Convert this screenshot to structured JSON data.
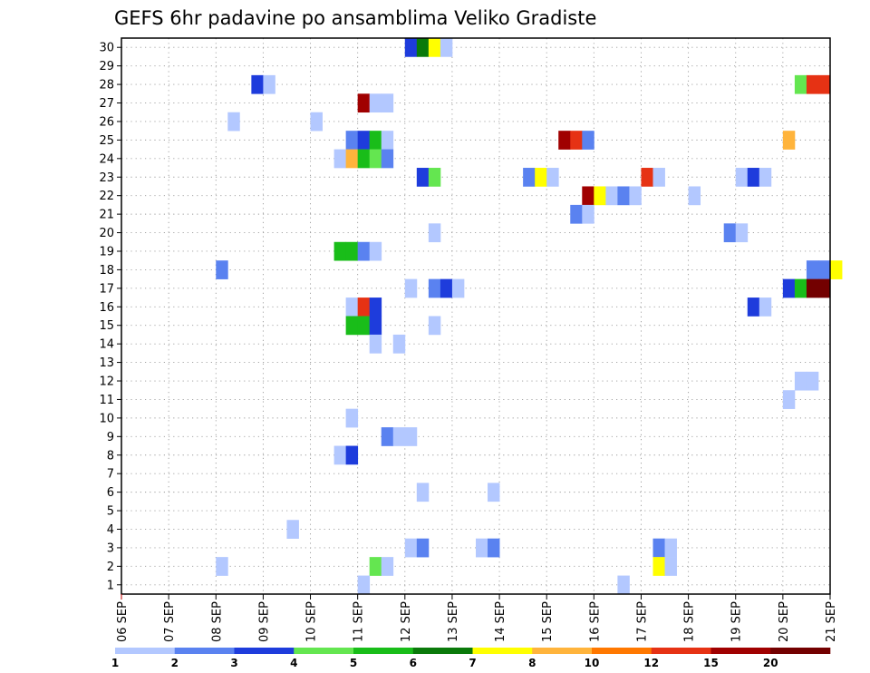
{
  "chart_data": {
    "type": "heatmap",
    "title": "GEFS 6hr padavine po ansamblima Veliko Gradiste",
    "x_tick_labels": [
      "06 SEP",
      "07 SEP",
      "08 SEP",
      "09 SEP",
      "10 SEP",
      "11 SEP",
      "12 SEP",
      "13 SEP",
      "14 SEP",
      "15 SEP",
      "16 SEP",
      "17 SEP",
      "18 SEP",
      "19 SEP",
      "20 SEP",
      "21 SEP"
    ],
    "y_tick_labels": [
      "1",
      "2",
      "3",
      "4",
      "5",
      "6",
      "7",
      "8",
      "9",
      "10",
      "11",
      "12",
      "13",
      "14",
      "15",
      "16",
      "17",
      "18",
      "19",
      "20",
      "21",
      "22",
      "23",
      "24",
      "25",
      "26",
      "27",
      "28",
      "29",
      "30"
    ],
    "x_unit": "day",
    "xlim": [
      6,
      21
    ],
    "ylim": [
      0.5,
      30.5
    ],
    "grid": true,
    "colorbar": {
      "labels": [
        "1",
        "2",
        "3",
        "4",
        "5",
        "6",
        "7",
        "8",
        "10",
        "12",
        "15",
        "20"
      ],
      "colors": [
        "#b3c8ff",
        "#5a82f0",
        "#1e3cdc",
        "#64e650",
        "#19bd19",
        "#0a7a0a",
        "#ffff00",
        "#ffb43c",
        "#ff7800",
        "#e63214",
        "#a00000",
        "#730000"
      ]
    },
    "cells": [
      {
        "x": 12.0,
        "y": 30,
        "c": 3
      },
      {
        "x": 12.25,
        "y": 30,
        "c": 6
      },
      {
        "x": 12.5,
        "y": 30,
        "c": 7
      },
      {
        "x": 12.75,
        "y": 30,
        "c": 1
      },
      {
        "x": 8.75,
        "y": 28,
        "c": 3
      },
      {
        "x": 9.0,
        "y": 28,
        "c": 1
      },
      {
        "x": 20.25,
        "y": 28,
        "c": 4
      },
      {
        "x": 20.5,
        "y": 28,
        "c": 10
      },
      {
        "x": 20.75,
        "y": 28,
        "c": 10
      },
      {
        "x": 11.0,
        "y": 27,
        "c": 11
      },
      {
        "x": 11.25,
        "y": 27,
        "c": 1
      },
      {
        "x": 11.5,
        "y": 27,
        "c": 1
      },
      {
        "x": 8.25,
        "y": 26,
        "c": 1
      },
      {
        "x": 10.0,
        "y": 26,
        "c": 1
      },
      {
        "x": 10.75,
        "y": 25,
        "c": 2
      },
      {
        "x": 11.0,
        "y": 25,
        "c": 3
      },
      {
        "x": 11.25,
        "y": 25,
        "c": 5
      },
      {
        "x": 11.5,
        "y": 25,
        "c": 1
      },
      {
        "x": 15.25,
        "y": 25,
        "c": 11
      },
      {
        "x": 15.5,
        "y": 25,
        "c": 10
      },
      {
        "x": 15.75,
        "y": 25,
        "c": 2
      },
      {
        "x": 20.0,
        "y": 25,
        "c": 8
      },
      {
        "x": 10.5,
        "y": 24,
        "c": 1
      },
      {
        "x": 10.75,
        "y": 24,
        "c": 8
      },
      {
        "x": 11.0,
        "y": 24,
        "c": 5
      },
      {
        "x": 11.25,
        "y": 24,
        "c": 4
      },
      {
        "x": 11.5,
        "y": 24,
        "c": 2
      },
      {
        "x": 12.25,
        "y": 23,
        "c": 3
      },
      {
        "x": 12.5,
        "y": 23,
        "c": 4
      },
      {
        "x": 14.5,
        "y": 23,
        "c": 2
      },
      {
        "x": 14.75,
        "y": 23,
        "c": 7
      },
      {
        "x": 15.0,
        "y": 23,
        "c": 1
      },
      {
        "x": 17.0,
        "y": 23,
        "c": 10
      },
      {
        "x": 17.25,
        "y": 23,
        "c": 1
      },
      {
        "x": 19.0,
        "y": 23,
        "c": 1
      },
      {
        "x": 19.25,
        "y": 23,
        "c": 3
      },
      {
        "x": 19.5,
        "y": 23,
        "c": 1
      },
      {
        "x": 15.75,
        "y": 22,
        "c": 11
      },
      {
        "x": 16.0,
        "y": 22,
        "c": 7
      },
      {
        "x": 16.25,
        "y": 22,
        "c": 1
      },
      {
        "x": 16.5,
        "y": 22,
        "c": 2
      },
      {
        "x": 16.75,
        "y": 22,
        "c": 1
      },
      {
        "x": 18.0,
        "y": 22,
        "c": 1
      },
      {
        "x": 15.5,
        "y": 21,
        "c": 2
      },
      {
        "x": 15.75,
        "y": 21,
        "c": 1
      },
      {
        "x": 12.5,
        "y": 20,
        "c": 1
      },
      {
        "x": 18.75,
        "y": 20,
        "c": 2
      },
      {
        "x": 19.0,
        "y": 20,
        "c": 1
      },
      {
        "x": 8.0,
        "y": 18,
        "c": 2
      },
      {
        "x": 10.5,
        "y": 19,
        "c": 5
      },
      {
        "x": 10.75,
        "y": 19,
        "c": 5
      },
      {
        "x": 11.0,
        "y": 19,
        "c": 2
      },
      {
        "x": 11.25,
        "y": 19,
        "c": 1
      },
      {
        "x": 20.5,
        "y": 18,
        "c": 2
      },
      {
        "x": 20.75,
        "y": 18,
        "c": 2
      },
      {
        "x": 21.0,
        "y": 18,
        "c": 7
      },
      {
        "x": 12.0,
        "y": 17,
        "c": 1
      },
      {
        "x": 12.5,
        "y": 17,
        "c": 2
      },
      {
        "x": 12.75,
        "y": 17,
        "c": 3
      },
      {
        "x": 13.0,
        "y": 17,
        "c": 1
      },
      {
        "x": 20.0,
        "y": 17,
        "c": 3
      },
      {
        "x": 20.25,
        "y": 17,
        "c": 5
      },
      {
        "x": 20.5,
        "y": 17,
        "c": 12
      },
      {
        "x": 20.75,
        "y": 17,
        "c": 12
      },
      {
        "x": 10.75,
        "y": 16,
        "c": 1
      },
      {
        "x": 11.0,
        "y": 16,
        "c": 10
      },
      {
        "x": 11.25,
        "y": 16,
        "c": 3
      },
      {
        "x": 19.25,
        "y": 16,
        "c": 3
      },
      {
        "x": 19.5,
        "y": 16,
        "c": 1
      },
      {
        "x": 10.75,
        "y": 15,
        "c": 5
      },
      {
        "x": 11.0,
        "y": 15,
        "c": 5
      },
      {
        "x": 11.25,
        "y": 15,
        "c": 3
      },
      {
        "x": 12.5,
        "y": 15,
        "c": 1
      },
      {
        "x": 11.25,
        "y": 14,
        "c": 1
      },
      {
        "x": 11.75,
        "y": 14,
        "c": 1
      },
      {
        "x": 20.25,
        "y": 12,
        "c": 1
      },
      {
        "x": 20.5,
        "y": 12,
        "c": 1
      },
      {
        "x": 20.0,
        "y": 11,
        "c": 1
      },
      {
        "x": 10.75,
        "y": 10,
        "c": 1
      },
      {
        "x": 11.5,
        "y": 9,
        "c": 2
      },
      {
        "x": 11.75,
        "y": 9,
        "c": 1
      },
      {
        "x": 12.0,
        "y": 9,
        "c": 1
      },
      {
        "x": 10.5,
        "y": 8,
        "c": 1
      },
      {
        "x": 10.75,
        "y": 8,
        "c": 3
      },
      {
        "x": 12.25,
        "y": 6,
        "c": 1
      },
      {
        "x": 13.75,
        "y": 6,
        "c": 1
      },
      {
        "x": 9.5,
        "y": 4,
        "c": 1
      },
      {
        "x": 12.0,
        "y": 3,
        "c": 1
      },
      {
        "x": 12.25,
        "y": 3,
        "c": 2
      },
      {
        "x": 13.5,
        "y": 3,
        "c": 1
      },
      {
        "x": 13.75,
        "y": 3,
        "c": 2
      },
      {
        "x": 17.25,
        "y": 3,
        "c": 2
      },
      {
        "x": 17.5,
        "y": 3,
        "c": 1
      },
      {
        "x": 8.0,
        "y": 2,
        "c": 1
      },
      {
        "x": 11.25,
        "y": 2,
        "c": 4
      },
      {
        "x": 11.5,
        "y": 2,
        "c": 1
      },
      {
        "x": 17.25,
        "y": 2,
        "c": 7
      },
      {
        "x": 17.5,
        "y": 2,
        "c": 1
      },
      {
        "x": 11.0,
        "y": 1,
        "c": 1
      },
      {
        "x": 16.5,
        "y": 1,
        "c": 1
      }
    ]
  }
}
